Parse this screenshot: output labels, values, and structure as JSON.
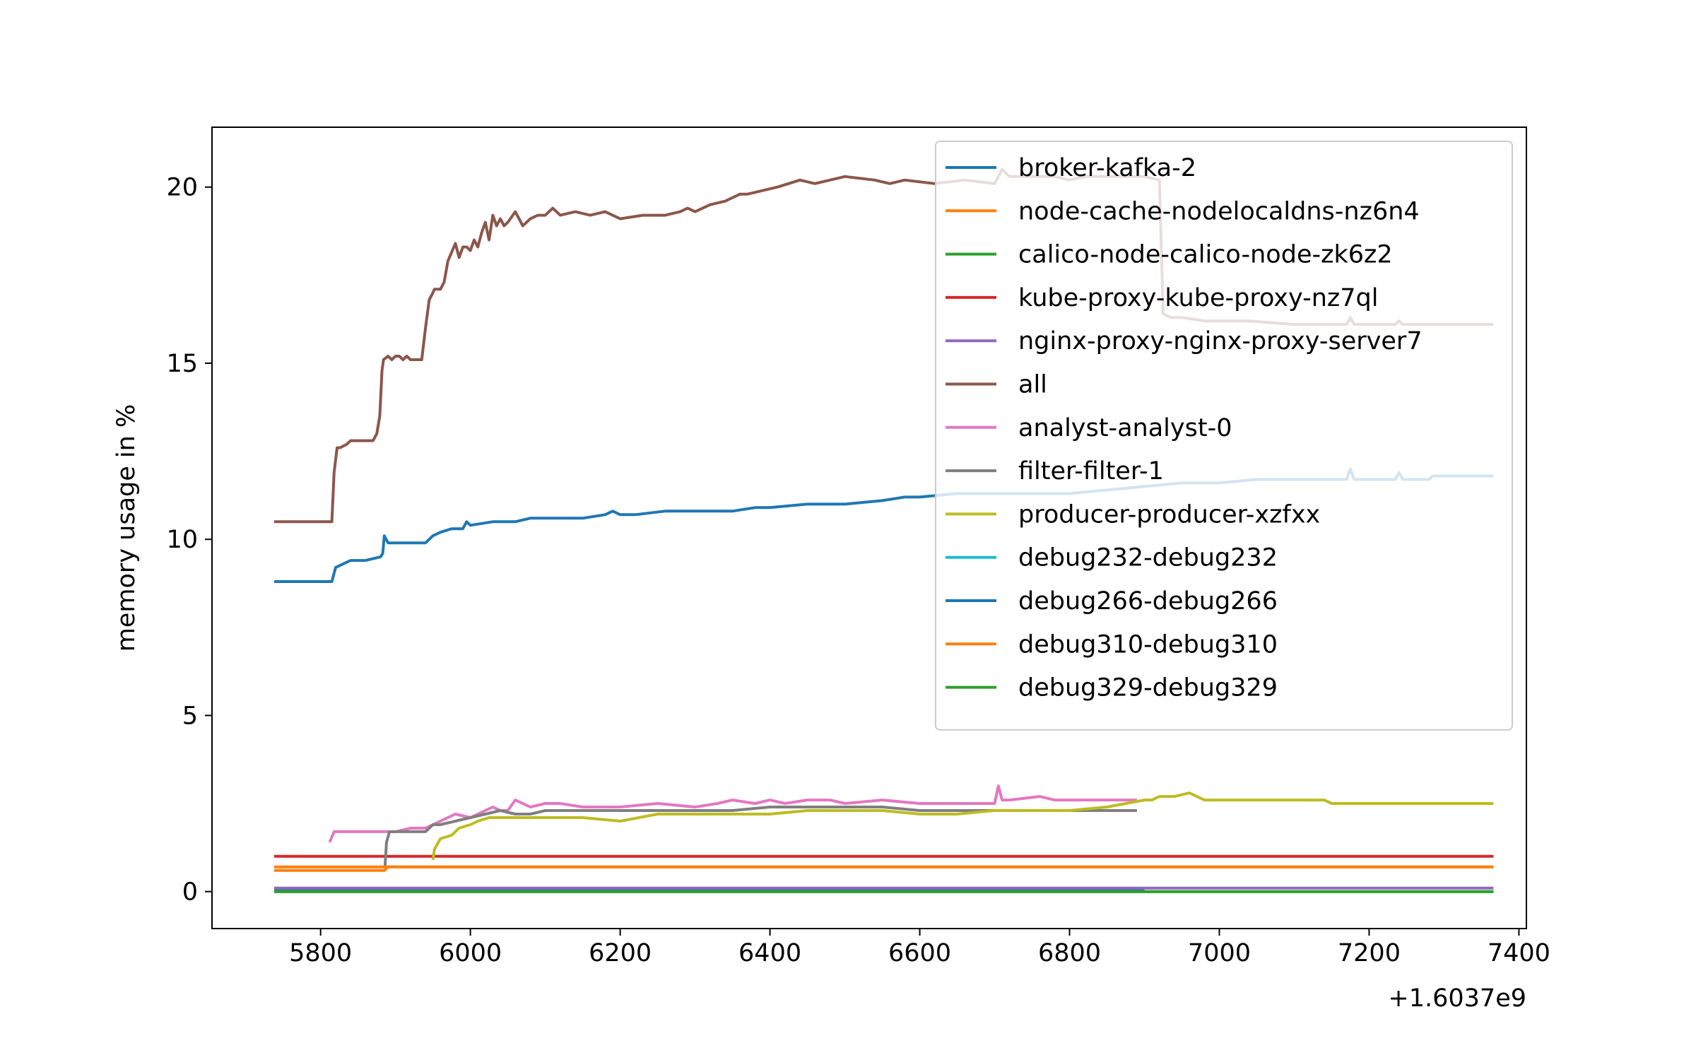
{
  "chart_data": {
    "type": "line",
    "title": "",
    "xlabel": "",
    "ylabel": "memory usage in %",
    "x_offset_label": "+1.6037e9",
    "xlim": [
      5655,
      7410
    ],
    "ylim": [
      -1.05,
      21.7
    ],
    "xticks": [
      5800,
      6000,
      6200,
      6400,
      6600,
      6800,
      7000,
      7200,
      7400
    ],
    "yticks": [
      0,
      5,
      10,
      15,
      20
    ],
    "grid": false,
    "legend_position": "upper-right",
    "series": [
      {
        "name": "broker-kafka-2",
        "color": "#1f77b4",
        "x": [
          5738,
          5890,
          5890,
          6900
        ],
        "y": [
          0.05,
          0.05,
          0.05,
          0.05
        ]
      },
      {
        "name": "node-cache-nodelocaldns-nz6n4",
        "color": "#ff7f0e",
        "x": [
          5738,
          5885,
          5890,
          7366
        ],
        "y": [
          0.6,
          0.6,
          0.7,
          0.7
        ]
      },
      {
        "name": "calico-node-calico-node-zk6z2",
        "color": "#2ca02c",
        "x": [
          5738,
          7366
        ],
        "y": [
          0.0,
          0.0
        ]
      },
      {
        "name": "kube-proxy-kube-proxy-nz7ql",
        "color": "#d62728",
        "x": [
          5738,
          7366
        ],
        "y": [
          1.0,
          1.0
        ]
      },
      {
        "name": "nginx-proxy-nginx-proxy-server7",
        "color": "#9467bd",
        "x": [
          5738,
          7366
        ],
        "y": [
          0.1,
          0.1
        ]
      },
      {
        "name": "all",
        "color": "#8c564b",
        "x": [
          5738,
          5815,
          5818,
          5822,
          5826,
          5835,
          5840,
          5850,
          5870,
          5875,
          5879,
          5882,
          5884,
          5890,
          5895,
          5900,
          5905,
          5910,
          5915,
          5920,
          5925,
          5935,
          5940,
          5945,
          5950,
          5952,
          5955,
          5960,
          5965,
          5970,
          5980,
          5985,
          5990,
          5995,
          6000,
          6005,
          6010,
          6015,
          6020,
          6025,
          6030,
          6035,
          6040,
          6045,
          6050,
          6060,
          6070,
          6080,
          6090,
          6100,
          6110,
          6120,
          6140,
          6160,
          6180,
          6200,
          6230,
          6260,
          6280,
          6290,
          6300,
          6320,
          6340,
          6360,
          6370,
          6390,
          6410,
          6440,
          6460,
          6480,
          6500,
          6540,
          6560,
          6580,
          6620,
          6660,
          6700,
          6710,
          6720,
          6740,
          6780,
          6800,
          6820,
          6840,
          6880,
          6900,
          6920,
          6925,
          6935,
          6950,
          6980,
          7000,
          7040,
          7100,
          7170,
          7175,
          7180,
          7235,
          7240,
          7245,
          7300,
          7366
        ],
        "y": [
          10.5,
          10.5,
          11.9,
          12.6,
          12.6,
          12.7,
          12.8,
          12.8,
          12.8,
          13.0,
          13.5,
          14.8,
          15.1,
          15.2,
          15.1,
          15.2,
          15.2,
          15.1,
          15.2,
          15.1,
          15.1,
          15.1,
          16.0,
          16.8,
          17.0,
          17.1,
          17.1,
          17.1,
          17.3,
          17.9,
          18.4,
          18.0,
          18.3,
          18.3,
          18.2,
          18.5,
          18.3,
          18.7,
          19.0,
          18.5,
          19.2,
          18.9,
          19.1,
          18.9,
          19.0,
          19.3,
          18.9,
          19.1,
          19.2,
          19.2,
          19.4,
          19.2,
          19.3,
          19.2,
          19.3,
          19.1,
          19.2,
          19.2,
          19.3,
          19.4,
          19.3,
          19.5,
          19.6,
          19.8,
          19.8,
          19.9,
          20.0,
          20.2,
          20.1,
          20.2,
          20.3,
          20.2,
          20.1,
          20.2,
          20.1,
          20.2,
          20.1,
          20.5,
          20.3,
          20.3,
          20.3,
          20.2,
          20.3,
          20.3,
          20.3,
          20.3,
          20.2,
          16.4,
          16.3,
          16.3,
          16.2,
          16.2,
          16.2,
          16.1,
          16.1,
          16.3,
          16.1,
          16.1,
          16.2,
          16.1,
          16.1,
          16.1
        ]
      },
      {
        "name": "analyst-analyst-0",
        "color": "#e377c2",
        "x": [
          5812,
          5818,
          5825,
          5840,
          5870,
          5900,
          5920,
          5940,
          5960,
          5980,
          6000,
          6020,
          6030,
          6040,
          6050,
          6060,
          6080,
          6100,
          6120,
          6150,
          6200,
          6250,
          6300,
          6330,
          6350,
          6380,
          6400,
          6420,
          6450,
          6480,
          6500,
          6550,
          6600,
          6650,
          6700,
          6705,
          6710,
          6720,
          6760,
          6780,
          6800,
          6850,
          6890
        ],
        "y": [
          1.4,
          1.7,
          1.7,
          1.7,
          1.7,
          1.7,
          1.8,
          1.8,
          2.0,
          2.2,
          2.1,
          2.3,
          2.4,
          2.3,
          2.3,
          2.6,
          2.4,
          2.5,
          2.5,
          2.4,
          2.4,
          2.5,
          2.4,
          2.5,
          2.6,
          2.5,
          2.6,
          2.5,
          2.6,
          2.6,
          2.5,
          2.6,
          2.5,
          2.5,
          2.5,
          3.0,
          2.6,
          2.6,
          2.7,
          2.6,
          2.6,
          2.6,
          2.6
        ]
      },
      {
        "name": "filter-filter-1",
        "color": "#7f7f7f",
        "x": [
          5886,
          5888,
          5892,
          5900,
          5920,
          5940,
          5950,
          5960,
          5980,
          6000,
          6020,
          6040,
          6060,
          6080,
          6100,
          6120,
          6150,
          6200,
          6250,
          6300,
          6350,
          6400,
          6450,
          6500,
          6550,
          6600,
          6650,
          6700,
          6750,
          6800,
          6850,
          6890
        ],
        "y": [
          0.7,
          1.4,
          1.7,
          1.7,
          1.7,
          1.7,
          1.9,
          1.9,
          2.0,
          2.1,
          2.2,
          2.3,
          2.2,
          2.2,
          2.3,
          2.3,
          2.3,
          2.3,
          2.3,
          2.3,
          2.3,
          2.4,
          2.4,
          2.4,
          2.4,
          2.3,
          2.3,
          2.3,
          2.3,
          2.3,
          2.3,
          2.3
        ]
      },
      {
        "name": "producer-producer-xzfxx",
        "color": "#bcbd22",
        "x": [
          5950,
          5952,
          5960,
          5975,
          5985,
          6000,
          6010,
          6025,
          6050,
          6080,
          6100,
          6150,
          6200,
          6250,
          6300,
          6350,
          6400,
          6450,
          6500,
          6550,
          6600,
          6650,
          6700,
          6750,
          6800,
          6850,
          6900,
          6910,
          6920,
          6940,
          6960,
          6980,
          7000,
          7050,
          7100,
          7140,
          7150,
          7200,
          7300,
          7366
        ],
        "y": [
          0.9,
          1.2,
          1.5,
          1.6,
          1.8,
          1.9,
          2.0,
          2.1,
          2.1,
          2.1,
          2.1,
          2.1,
          2.0,
          2.2,
          2.2,
          2.2,
          2.2,
          2.3,
          2.3,
          2.3,
          2.2,
          2.2,
          2.3,
          2.3,
          2.3,
          2.4,
          2.6,
          2.6,
          2.7,
          2.7,
          2.8,
          2.6,
          2.6,
          2.6,
          2.6,
          2.6,
          2.5,
          2.5,
          2.5,
          2.5
        ]
      },
      {
        "name": "debug232-debug232",
        "color": "#17becf",
        "x": [
          6908,
          6912
        ],
        "y": [
          0.0,
          0.0
        ]
      },
      {
        "name": "debug266-debug266",
        "color": "#1f77b4",
        "x": [
          5738,
          5815,
          5820,
          5830,
          5840,
          5860,
          5880,
          5883,
          5885,
          5890,
          5900,
          5940,
          5950,
          5960,
          5975,
          5990,
          5995,
          6000,
          6030,
          6060,
          6080,
          6100,
          6150,
          6180,
          6190,
          6200,
          6220,
          6260,
          6280,
          6300,
          6350,
          6380,
          6400,
          6450,
          6500,
          6550,
          6580,
          6600,
          6650,
          6700,
          6750,
          6800,
          6850,
          6900,
          6950,
          7000,
          7050,
          7100,
          7150,
          7170,
          7175,
          7180,
          7235,
          7240,
          7245,
          7280,
          7285,
          7366
        ],
        "y": [
          8.8,
          8.8,
          9.2,
          9.3,
          9.4,
          9.4,
          9.5,
          9.6,
          10.1,
          9.9,
          9.9,
          9.9,
          10.1,
          10.2,
          10.3,
          10.3,
          10.5,
          10.4,
          10.5,
          10.5,
          10.6,
          10.6,
          10.6,
          10.7,
          10.8,
          10.7,
          10.7,
          10.8,
          10.8,
          10.8,
          10.8,
          10.9,
          10.9,
          11.0,
          11.0,
          11.1,
          11.2,
          11.2,
          11.3,
          11.3,
          11.3,
          11.3,
          11.4,
          11.5,
          11.6,
          11.6,
          11.7,
          11.7,
          11.7,
          11.7,
          12.0,
          11.7,
          11.7,
          11.9,
          11.7,
          11.7,
          11.8,
          11.8
        ]
      },
      {
        "name": "debug310-debug310",
        "color": "#ff7f0e",
        "x": [
          5738,
          7366
        ],
        "y": [
          0.7,
          0.7
        ]
      },
      {
        "name": "debug329-debug329",
        "color": "#2ca02c",
        "x": [
          5738,
          7366
        ],
        "y": [
          0.0,
          0.0
        ]
      }
    ]
  }
}
